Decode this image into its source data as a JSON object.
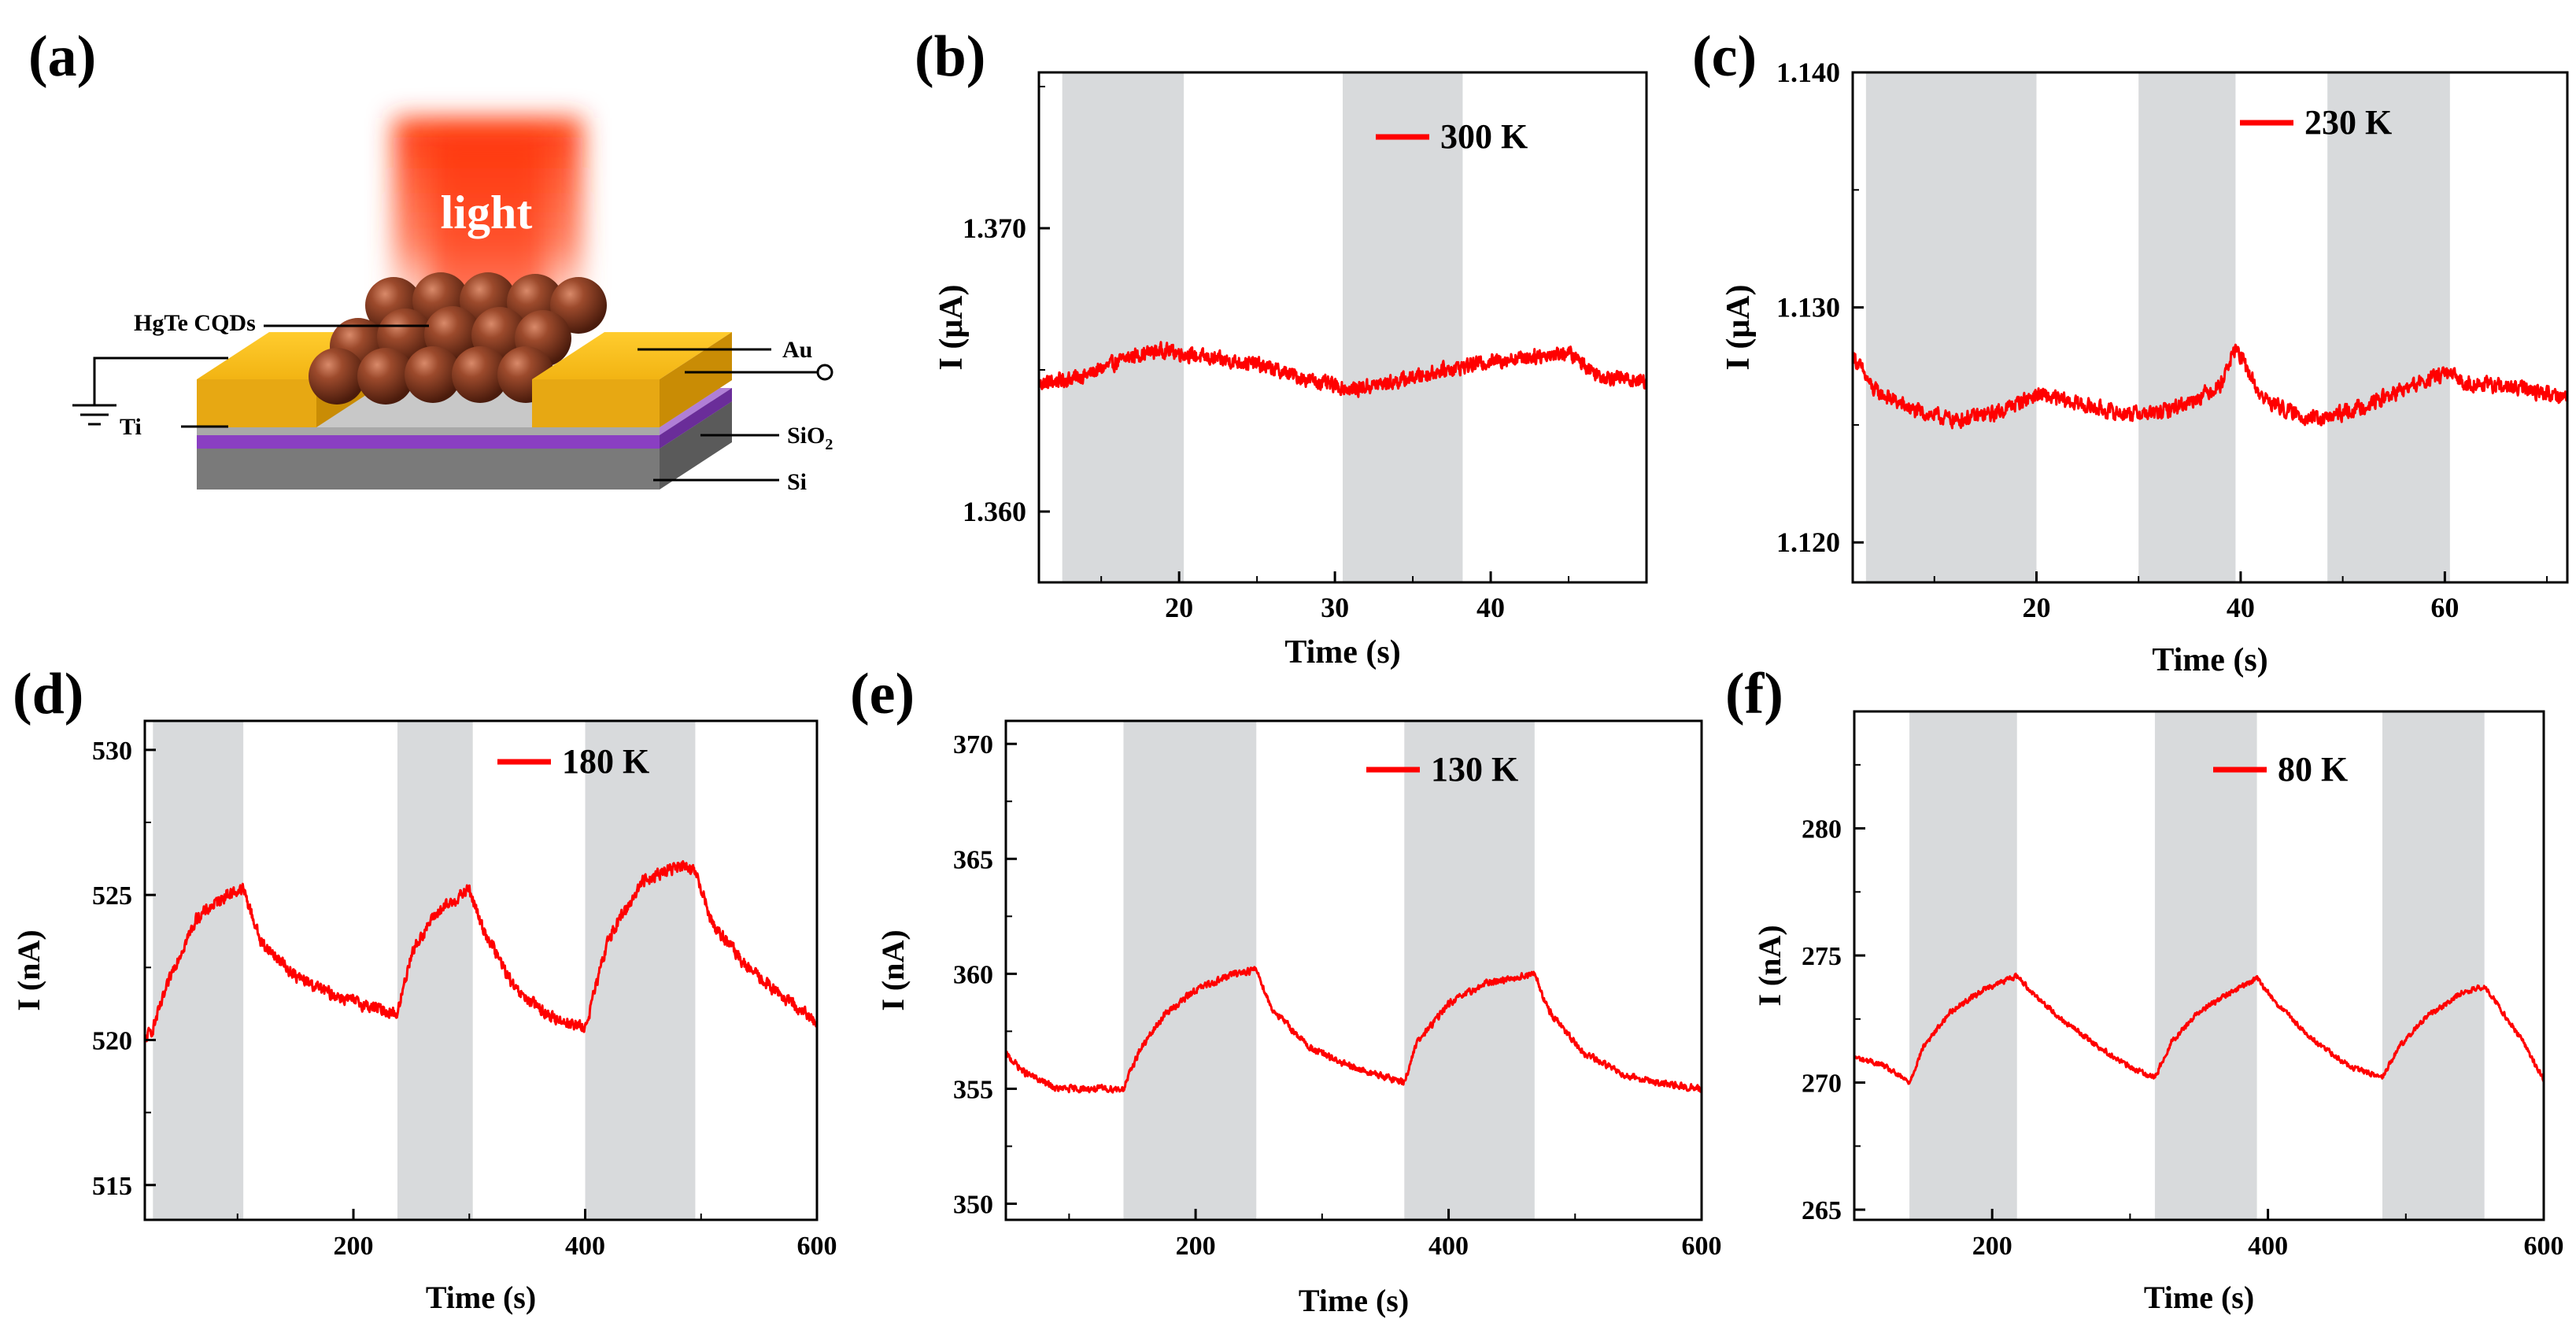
{
  "schematic": {
    "panel_label": "(a)",
    "light_label": "light",
    "labels": {
      "cqd": "HgTe CQDs",
      "ti": "Ti",
      "au": "Au",
      "sio2": "SiO",
      "sio2_sub": "2",
      "si": "Si"
    }
  },
  "chart_data": [
    {
      "type": "line",
      "panel_label": "(b)",
      "xlabel": "Time (s)",
      "ylabel": "I (μA)",
      "xlim": [
        11,
        50
      ],
      "ylim": [
        1.3575,
        1.3755
      ],
      "xticks": [
        20,
        30,
        40
      ],
      "yticks": [
        1.36,
        1.37
      ],
      "shaded_regions": [
        [
          12.5,
          20.3
        ],
        [
          30.5,
          38.2
        ]
      ],
      "series": [
        {
          "name": "300 K",
          "color": "#ff0000",
          "noise": 0.00035,
          "points": [
            [
              11,
              1.3645
            ],
            [
              14,
              1.3648
            ],
            [
              17,
              1.3655
            ],
            [
              19,
              1.3657
            ],
            [
              22,
              1.3654
            ],
            [
              25,
              1.3652
            ],
            [
              28,
              1.3647
            ],
            [
              31,
              1.3643
            ],
            [
              34,
              1.3646
            ],
            [
              37,
              1.365
            ],
            [
              40,
              1.3653
            ],
            [
              43,
              1.3655
            ],
            [
              45,
              1.3656
            ],
            [
              47,
              1.3648
            ],
            [
              50,
              1.3646
            ]
          ]
        }
      ],
      "legend": "top-right"
    },
    {
      "type": "line",
      "panel_label": "(c)",
      "xlabel": "Time (s)",
      "ylabel": "I (μA)",
      "xlim": [
        2,
        72
      ],
      "ylim": [
        1.1183,
        1.14
      ],
      "xticks": [
        20,
        40,
        60
      ],
      "yticks": [
        1.12,
        1.13,
        1.14
      ],
      "shaded_regions": [
        [
          3.3,
          20
        ],
        [
          30,
          39.5
        ],
        [
          48.5,
          60.5
        ]
      ],
      "series": [
        {
          "name": "230 K",
          "color": "#ff0000",
          "noise": 0.00045,
          "points": [
            [
              2,
              1.128
            ],
            [
              4,
              1.1265
            ],
            [
              8,
              1.1256
            ],
            [
              12,
              1.1252
            ],
            [
              16,
              1.1255
            ],
            [
              20,
              1.1263
            ],
            [
              23,
              1.126
            ],
            [
              28,
              1.1255
            ],
            [
              32,
              1.1255
            ],
            [
              35,
              1.126
            ],
            [
              38,
              1.1267
            ],
            [
              39.5,
              1.1283
            ],
            [
              42,
              1.1262
            ],
            [
              45,
              1.1255
            ],
            [
              48,
              1.1252
            ],
            [
              52,
              1.1258
            ],
            [
              56,
              1.1265
            ],
            [
              60,
              1.1272
            ],
            [
              62,
              1.1268
            ],
            [
              68,
              1.1265
            ],
            [
              72,
              1.1262
            ]
          ]
        }
      ],
      "legend": "top-right"
    },
    {
      "type": "line",
      "panel_label": "(d)",
      "xlabel": "Time (s)",
      "ylabel": "I (nA)",
      "xlim": [
        20,
        600
      ],
      "ylim": [
        513.8,
        531
      ],
      "xticks": [
        200,
        400,
        600
      ],
      "yticks": [
        515,
        520,
        525,
        530
      ],
      "shaded_regions": [
        [
          27,
          105
        ],
        [
          238,
          303
        ],
        [
          400,
          495
        ]
      ],
      "series": [
        {
          "name": "180 K",
          "color": "#ff0000",
          "noise": 0.28,
          "points": [
            [
              20,
              520
            ],
            [
              27,
              520.4
            ],
            [
              45,
              522.5
            ],
            [
              65,
              524.2
            ],
            [
              90,
              525
            ],
            [
              105,
              525.2
            ],
            [
              120,
              523.4
            ],
            [
              150,
              522.2
            ],
            [
              180,
              521.6
            ],
            [
              210,
              521.2
            ],
            [
              238,
              520.9
            ],
            [
              250,
              523
            ],
            [
              270,
              524.3
            ],
            [
              300,
              525.2
            ],
            [
              310,
              524
            ],
            [
              340,
              521.7
            ],
            [
              370,
              520.8
            ],
            [
              400,
              520.4
            ],
            [
              420,
              523.5
            ],
            [
              450,
              525.5
            ],
            [
              480,
              526
            ],
            [
              495,
              525.8
            ],
            [
              510,
              524
            ],
            [
              540,
              522.5
            ],
            [
              570,
              521.5
            ],
            [
              600,
              520.6
            ]
          ]
        }
      ],
      "legend": "top-right"
    },
    {
      "type": "line",
      "panel_label": "(e)",
      "xlabel": "Time (s)",
      "ylabel": "I (nA)",
      "xlim": [
        50,
        600
      ],
      "ylim": [
        349.3,
        371
      ],
      "xticks": [
        200,
        400,
        600
      ],
      "yticks": [
        350,
        355,
        360,
        365,
        370
      ],
      "shaded_regions": [
        [
          143,
          248
        ],
        [
          365,
          468
        ]
      ],
      "series": [
        {
          "name": "130 K",
          "color": "#ff0000",
          "noise": 0.2,
          "points": [
            [
              50,
              356.5
            ],
            [
              65,
              355.7
            ],
            [
              90,
              355
            ],
            [
              120,
              355
            ],
            [
              143,
              355
            ],
            [
              155,
              356.6
            ],
            [
              175,
              358.2
            ],
            [
              200,
              359.3
            ],
            [
              230,
              360
            ],
            [
              248,
              360.2
            ],
            [
              260,
              358.5
            ],
            [
              290,
              356.8
            ],
            [
              320,
              356
            ],
            [
              350,
              355.5
            ],
            [
              365,
              355.3
            ],
            [
              375,
              357
            ],
            [
              400,
              358.7
            ],
            [
              430,
              359.6
            ],
            [
              468,
              360
            ],
            [
              478,
              358.5
            ],
            [
              505,
              356.6
            ],
            [
              540,
              355.6
            ],
            [
              570,
              355.2
            ],
            [
              600,
              355
            ]
          ]
        }
      ],
      "legend": "top-right"
    },
    {
      "type": "line",
      "panel_label": "(f)",
      "xlabel": "Time (s)",
      "ylabel": "I (nA)",
      "xlim": [
        100,
        600
      ],
      "ylim": [
        264.6,
        284.6
      ],
      "xticks": [
        200,
        400,
        600
      ],
      "yticks": [
        265,
        270,
        275,
        280
      ],
      "shaded_regions": [
        [
          140,
          218
        ],
        [
          318,
          392
        ],
        [
          483,
          557
        ]
      ],
      "series": [
        {
          "name": "80 K",
          "color": "#ff0000",
          "noise": 0.14,
          "points": [
            [
              100,
              271
            ],
            [
              120,
              270.7
            ],
            [
              140,
              270
            ],
            [
              150,
              271.4
            ],
            [
              170,
              272.8
            ],
            [
              195,
              273.7
            ],
            [
              218,
              274.2
            ],
            [
              230,
              273.5
            ],
            [
              250,
              272.5
            ],
            [
              280,
              271.3
            ],
            [
              300,
              270.6
            ],
            [
              318,
              270.2
            ],
            [
              330,
              271.6
            ],
            [
              350,
              272.8
            ],
            [
              375,
              273.6
            ],
            [
              392,
              274.1
            ],
            [
              405,
              273.2
            ],
            [
              430,
              271.8
            ],
            [
              460,
              270.6
            ],
            [
              483,
              270.2
            ],
            [
              495,
              271.4
            ],
            [
              515,
              272.6
            ],
            [
              540,
              273.5
            ],
            [
              557,
              273.8
            ],
            [
              570,
              272.8
            ],
            [
              585,
              271.6
            ],
            [
              600,
              270.1
            ]
          ]
        }
      ],
      "legend": "top-right"
    }
  ]
}
